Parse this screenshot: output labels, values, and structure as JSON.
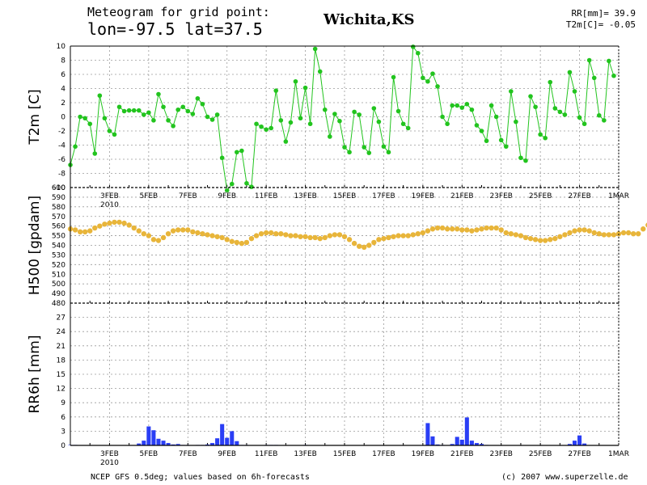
{
  "header": {
    "line1": "Meteogram for grid point:",
    "line2": "lon=-97.5  lat=37.5",
    "location": "Wichita,KS",
    "rr_total": "RR[mm]= 39.9",
    "t2m_mean": "T2m[C]= -0.05"
  },
  "footer": {
    "source": "NCEP GFS 0.5deg; values based on 6h-forecasts",
    "credit": "(c) 2007 www.superzelle.de"
  },
  "colors": {
    "temperature": "#22c41e",
    "geopotential": "#e8b53a",
    "precipitation": "#2a3ef5",
    "grid": "#9a9a9a"
  },
  "chart_data": [
    {
      "id": "t2m",
      "type": "line",
      "ylabel": "T2m [C]",
      "ylim": [
        -10,
        10
      ],
      "yticks": [
        -10,
        -8,
        -6,
        -4,
        -2,
        0,
        2,
        4,
        6,
        8,
        10
      ],
      "xlim_days": [
        1.0,
        29.0
      ],
      "xtick_labels": [
        {
          "day": 3,
          "label": "3FEB"
        },
        {
          "day": 5,
          "label": "5FEB"
        },
        {
          "day": 7,
          "label": "7FEB"
        },
        {
          "day": 9,
          "label": "9FEB"
        },
        {
          "day": 11,
          "label": "11FEB"
        },
        {
          "day": 13,
          "label": "13FEB"
        },
        {
          "day": 15,
          "label": "15FEB"
        },
        {
          "day": 17,
          "label": "17FEB"
        },
        {
          "day": 19,
          "label": "19FEB"
        },
        {
          "day": 21,
          "label": "21FEB"
        },
        {
          "day": 23,
          "label": "23FEB"
        },
        {
          "day": 25,
          "label": "25FEB"
        },
        {
          "day": 27,
          "label": "27FEB"
        },
        {
          "day": 29,
          "label": "1MAR"
        }
      ],
      "year_label": "2010",
      "x_start_day": 1.0,
      "x_step_days": 0.25,
      "values": [
        -6.8,
        -4.2,
        0.0,
        -0.2,
        -1.0,
        -5.2,
        3.0,
        -0.2,
        -2.0,
        -2.5,
        1.4,
        0.8,
        0.9,
        0.9,
        0.9,
        0.3,
        0.6,
        -0.5,
        3.2,
        1.4,
        -0.5,
        -1.3,
        1.0,
        1.4,
        0.8,
        0.4,
        2.6,
        1.8,
        0.0,
        -0.4,
        0.3,
        -5.8,
        -10.4,
        -9.5,
        -5.0,
        -4.8,
        -9.4,
        -9.9,
        -1.0,
        -1.4,
        -1.8,
        -1.6,
        3.7,
        -0.5,
        -3.5,
        -0.8,
        5.0,
        -0.2,
        4.1,
        -1.0,
        9.6,
        6.4,
        1.0,
        -2.8,
        0.4,
        -0.6,
        -4.3,
        -5.0,
        0.7,
        0.3,
        -4.3,
        -5.1,
        1.2,
        -0.7,
        -4.2,
        -5.0,
        5.6,
        0.8,
        -1.0,
        -1.6,
        9.9,
        9.0,
        5.5,
        5.0,
        6.1,
        4.3,
        0.0,
        -1.0,
        1.6,
        1.6,
        1.3,
        1.8,
        1.0,
        -1.2,
        -2.0,
        -3.4,
        1.6,
        0.0,
        -3.3,
        -4.2,
        3.6,
        -0.7,
        -5.8,
        -6.2,
        2.9,
        1.4,
        -2.5,
        -3.0,
        4.9,
        1.2,
        0.7,
        0.3,
        6.3,
        3.6,
        -0.1,
        -1.0,
        8.0,
        5.5,
        0.2,
        -0.5,
        7.9,
        5.8
      ]
    },
    {
      "id": "h500",
      "type": "scatter",
      "ylabel": "H500 [gpdam]",
      "ylim": [
        480,
        600
      ],
      "yticks": [
        480,
        490,
        500,
        510,
        520,
        530,
        540,
        550,
        560,
        570,
        580,
        590,
        600
      ],
      "x_start_day": 1.0,
      "x_step_days": 0.25,
      "values": [
        557,
        556,
        554,
        554,
        555,
        558,
        560,
        562,
        563,
        564,
        564,
        563,
        561,
        558,
        555,
        552,
        550,
        546,
        545,
        548,
        552,
        555,
        556,
        556,
        556,
        554,
        553,
        552,
        551,
        550,
        549,
        548,
        546,
        544,
        543,
        542,
        543,
        547,
        550,
        552,
        553,
        553,
        552,
        552,
        551,
        550,
        550,
        549,
        549,
        548,
        548,
        547,
        548,
        550,
        551,
        551,
        549,
        546,
        542,
        539,
        538,
        540,
        543,
        546,
        547,
        548,
        549,
        550,
        550,
        550,
        551,
        552,
        553,
        555,
        557,
        558,
        558,
        557,
        557,
        557,
        556,
        556,
        555,
        556,
        557,
        558,
        558,
        558,
        556,
        553,
        552,
        551,
        550,
        548,
        547,
        546,
        545,
        545,
        546,
        547,
        549,
        551,
        553,
        555,
        556,
        556,
        555,
        553,
        552,
        551,
        551,
        551,
        552,
        553,
        553,
        552,
        552,
        557,
        561,
        562,
        562,
        561,
        557
      ]
    },
    {
      "id": "rr6h",
      "type": "bar",
      "ylabel": "RR6h [mm]",
      "ylim": [
        0,
        30
      ],
      "yticks": [
        0,
        3,
        6,
        9,
        12,
        15,
        18,
        21,
        24,
        27
      ],
      "x_start_day": 1.0,
      "x_step_days": 0.25,
      "values": [
        0.1,
        0.1,
        0,
        0,
        0,
        0,
        0,
        0,
        0,
        0,
        0,
        0,
        0,
        0,
        0.4,
        1.0,
        4.0,
        3.2,
        1.4,
        1.0,
        0.5,
        0.2,
        0.3,
        0.1,
        0.1,
        0,
        0.1,
        0.1,
        0.2,
        0.5,
        1.5,
        4.5,
        1.6,
        3.0,
        0.9,
        0.1,
        0.1,
        0,
        0,
        0,
        0.1,
        0.1,
        0.1,
        0,
        0,
        0,
        0,
        0,
        0.1,
        0,
        0,
        0,
        0,
        0,
        0,
        0,
        0,
        0,
        0,
        0,
        0,
        0,
        0,
        0,
        0,
        0,
        0,
        0,
        0,
        0,
        0,
        0,
        0,
        4.7,
        1.9,
        0.2,
        0.1,
        0,
        0.3,
        1.8,
        1.2,
        5.9,
        1.0,
        0.5,
        0.3,
        0.1,
        0,
        0,
        0,
        0,
        0,
        0,
        0,
        0,
        0,
        0,
        0,
        0,
        0,
        0,
        0,
        0,
        0.3,
        1.0,
        2.1,
        0.4,
        0,
        0,
        0,
        0,
        0,
        0,
        0,
        0
      ]
    }
  ]
}
